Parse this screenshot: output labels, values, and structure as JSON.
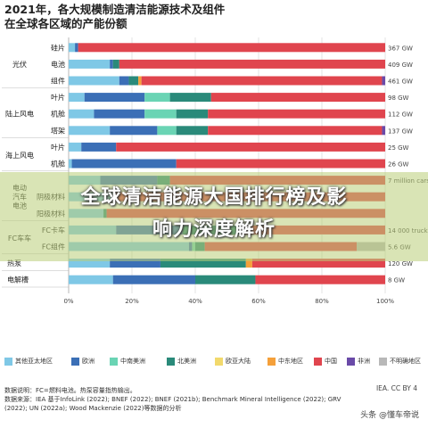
{
  "title_line1": "2021年，各大规模制造清洁能源技术及组件",
  "title_line2": "在全球各区域的产能份额",
  "overlay_line1": "全球清洁能源大国排行榜及影",
  "overlay_line2": "响力深度解析",
  "iea_credit": "IEA. CC BY 4",
  "watermark": "头条 @懂车帝说",
  "notes": [
    "数据说明：FC=燃料电池。热泵容量指热输出。",
    "数据来源：IEA 基于InfoLink (2022); BNEF (2022); BNEF (2021b); Benchmark Mineral Intelligence (2022); GRV",
    "(2022); UN (2022a); Wood Mackenzie (2022)等数据的分析"
  ],
  "colors": {
    "其他亚太地区": "#7fc8e6",
    "欧洲": "#3b6fb6",
    "中南美洲": "#6ad4b4",
    "北美洲": "#2a8a7a",
    "欧亚大陆": "#f2d96c",
    "中东地区": "#f5a03a",
    "中国": "#e0454e",
    "非洲": "#6a4aa8",
    "不明确地区": "#b8b8b8"
  },
  "chart_data": {
    "type": "bar",
    "orientation": "horizontal-stacked-100",
    "xlim": [
      0,
      100
    ],
    "xticks": [
      "0%",
      "20%",
      "40%",
      "60%",
      "80%",
      "100%"
    ],
    "legend_position": "bottom",
    "group_labels": [
      {
        "label": "光伏",
        "rows": [
          0,
          2
        ]
      },
      {
        "label": "陆上风电",
        "rows": [
          3,
          5
        ]
      },
      {
        "label": "海上风电",
        "rows": [
          6,
          7
        ]
      },
      {
        "label": "电动\n汽车\n电池",
        "rows": [
          8,
          10
        ]
      },
      {
        "label": "FC车车",
        "rows": [
          11,
          12
        ]
      }
    ],
    "series": [
      {
        "name": "其他亚太地区"
      },
      {
        "name": "欧洲"
      },
      {
        "name": "中南美洲"
      },
      {
        "name": "北美洲"
      },
      {
        "name": "欧亚大陆"
      },
      {
        "name": "中东地区"
      },
      {
        "name": "中国"
      },
      {
        "name": "非洲"
      },
      {
        "name": "不明确地区"
      }
    ],
    "rows": [
      {
        "label": "硅片",
        "total": "367 GW",
        "values": [
          2,
          1,
          0,
          0,
          0,
          0,
          97,
          0,
          0
        ]
      },
      {
        "label": "电池",
        "total": "409 GW",
        "values": [
          13,
          1,
          0,
          2,
          0,
          0,
          84,
          0,
          0
        ]
      },
      {
        "label": "组件",
        "total": "461 GW",
        "values": [
          16,
          3,
          0,
          3,
          0,
          1,
          76,
          1,
          0
        ]
      },
      {
        "label": "叶片",
        "total": "98 GW",
        "values": [
          5,
          19,
          8,
          13,
          0,
          0,
          55,
          0,
          0
        ]
      },
      {
        "label": "机舱",
        "total": "112 GW",
        "values": [
          8,
          16,
          10,
          10,
          0,
          0,
          56,
          0,
          0
        ]
      },
      {
        "label": "塔架",
        "total": "137 GW",
        "values": [
          13,
          15,
          6,
          10,
          0,
          0,
          55,
          1,
          0
        ]
      },
      {
        "label": "叶片",
        "total": "25 GW",
        "values": [
          4,
          11,
          0,
          0,
          0,
          0,
          85,
          0,
          0
        ]
      },
      {
        "label": "机舱",
        "total": "26 GW",
        "values": [
          1,
          33,
          0,
          0,
          0,
          0,
          66,
          0,
          0
        ]
      },
      {
        "label": "",
        "total": "7 million cars",
        "values": [
          10,
          18,
          0,
          4,
          0,
          0,
          68,
          0,
          0
        ]
      },
      {
        "label": "阴极材料",
        "total": "",
        "values": [
          14,
          0,
          0,
          0,
          0,
          0,
          86,
          0,
          0
        ]
      },
      {
        "label": "阳极材料",
        "total": "",
        "values": [
          11,
          0,
          0,
          1,
          0,
          0,
          88,
          0,
          0
        ]
      },
      {
        "label": "FC卡车",
        "total": "14 000 trucks",
        "values": [
          15,
          21,
          0,
          18,
          0,
          0,
          46,
          0,
          0
        ]
      },
      {
        "label": "FC组件",
        "total": "5.6 GW",
        "values": [
          38,
          1,
          1,
          3,
          0,
          0,
          48,
          0,
          9
        ]
      },
      {
        "label": "热泵",
        "total": "120 GW",
        "values": [
          13,
          16,
          0,
          27,
          0,
          2,
          42,
          0,
          0
        ]
      },
      {
        "label": "电解槽",
        "total": "8 GW",
        "values": [
          14,
          26,
          0,
          19,
          0,
          0,
          41,
          0,
          0
        ]
      }
    ],
    "standalone_labels": {
      "13": "热泵",
      "14": "电解槽"
    }
  }
}
